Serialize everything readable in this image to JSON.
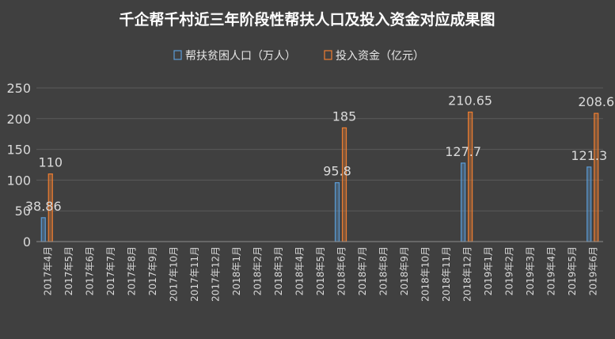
{
  "chart_data": {
    "type": "bar",
    "title": "千企帮千村近三年阶段性帮扶人口及投入资金对应成果图",
    "categories": [
      "2017年4月",
      "2017年5月",
      "2017年6月",
      "2017年7月",
      "2017年8月",
      "2017年9月",
      "2017年10月",
      "2017年11月",
      "2017年12月",
      "2018年1月",
      "2018年2月",
      "2018年3月",
      "2018年4月",
      "2018年5月",
      "2018年6月",
      "2018年7月",
      "2018年8月",
      "2018年9月",
      "2018年10月",
      "2018年11月",
      "2018年12月",
      "2019年1月",
      "2019年2月",
      "2019年3月",
      "2019年4月",
      "2019年5月",
      "2019年6月"
    ],
    "series": [
      {
        "name": "帮扶贫困人口（万人）",
        "color": "#5b9bd5",
        "values": [
          38.86,
          null,
          null,
          null,
          null,
          null,
          null,
          null,
          null,
          null,
          null,
          null,
          null,
          null,
          95.8,
          null,
          null,
          null,
          null,
          null,
          127.7,
          null,
          null,
          null,
          null,
          null,
          121.3
        ],
        "labels": [
          "38.86",
          "",
          "",
          "",
          "",
          "",
          "",
          "",
          "",
          "",
          "",
          "",
          "",
          "",
          "95.8",
          "",
          "",
          "",
          "",
          "",
          "127.7",
          "",
          "",
          "",
          "",
          "",
          "121.3"
        ]
      },
      {
        "name": "投入资金（亿元）",
        "color": "#ed7d31",
        "values": [
          110,
          null,
          null,
          null,
          null,
          null,
          null,
          null,
          null,
          null,
          null,
          null,
          null,
          null,
          185,
          null,
          null,
          null,
          null,
          null,
          210.65,
          null,
          null,
          null,
          null,
          null,
          208.6
        ],
        "labels": [
          "110",
          "",
          "",
          "",
          "",
          "",
          "",
          "",
          "",
          "",
          "",
          "",
          "",
          "",
          "185",
          "",
          "",
          "",
          "",
          "",
          "210.65",
          "",
          "",
          "",
          "",
          "",
          "208.6"
        ]
      }
    ],
    "ylim": [
      0,
      250
    ],
    "yticks": [
      "0",
      "50",
      "100",
      "150",
      "200",
      "250"
    ],
    "grid": true,
    "legend_position": "top"
  }
}
